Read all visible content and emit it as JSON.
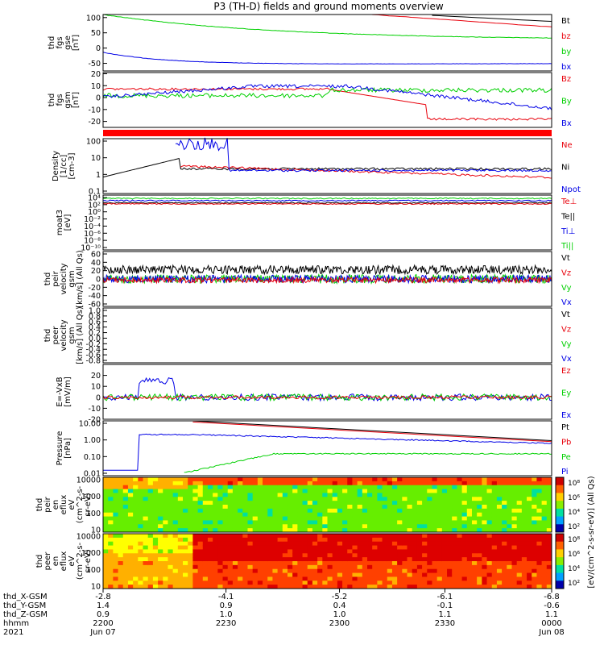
{
  "title": "P3 (TH-D) fields and ground moments overview",
  "colors": {
    "black": "#000000",
    "red": "#e8000b",
    "green": "#00d000",
    "blue": "#0000e6"
  },
  "chart_data": [
    {
      "type": "line",
      "ylabel": [
        "thd",
        "fgs",
        "gse",
        "[nT]"
      ],
      "yticks": [
        "100",
        "50",
        "0",
        "-50"
      ],
      "ylim": [
        -75,
        110
      ],
      "legend": [
        {
          "name": "Bt",
          "color": "black"
        },
        {
          "name": "bz",
          "color": "red"
        },
        {
          "name": "by",
          "color": "green"
        },
        {
          "name": "bx",
          "color": "blue"
        }
      ]
    },
    {
      "type": "line",
      "ylabel": [
        "thd",
        "fgs",
        "gsm",
        "[nT]"
      ],
      "yticks": [
        "20",
        "10",
        "0",
        "-10",
        "-20"
      ],
      "ylim": [
        -25,
        21
      ],
      "legend": [
        {
          "name": "Bz",
          "color": "red"
        },
        {
          "name": "By",
          "color": "green"
        },
        {
          "name": "Bx",
          "color": "blue"
        }
      ]
    },
    {
      "type": "line",
      "ylabel": [
        "Density",
        "[1/cc]",
        "[cm-3]"
      ],
      "yticks": [
        "100",
        "10",
        "1",
        "0.1"
      ],
      "scale": "log",
      "legend": [
        {
          "name": "Ne",
          "color": "red"
        },
        {
          "name": "Ni",
          "color": "black"
        },
        {
          "name": "Npot",
          "color": "blue"
        }
      ]
    },
    {
      "type": "line",
      "ylabel": [
        "moat3",
        "[eV]"
      ],
      "yticks": [
        "10⁴",
        "10²",
        "10⁰",
        "10⁻²",
        "10⁻⁴",
        "10⁻⁶",
        "10⁻⁸",
        "10⁻¹⁰"
      ],
      "scale": "log",
      "legend": [
        {
          "name": "Te⊥",
          "color": "red"
        },
        {
          "name": "Te||",
          "color": "black"
        },
        {
          "name": "Ti⊥",
          "color": "blue"
        },
        {
          "name": "Ti||",
          "color": "green"
        }
      ]
    },
    {
      "type": "line",
      "ylabel": [
        "thd",
        "peir",
        "velocity",
        "gsm",
        "[km/s] (All Qs)"
      ],
      "yticks": [
        "60",
        "40",
        "20",
        "0",
        "-20",
        "-40",
        "-60"
      ],
      "ylim": [
        -60,
        60
      ],
      "legend": [
        {
          "name": "Vt",
          "color": "black"
        },
        {
          "name": "Vz",
          "color": "red"
        },
        {
          "name": "Vy",
          "color": "green"
        },
        {
          "name": "Vx",
          "color": "blue"
        }
      ]
    },
    {
      "type": "line",
      "ylabel": [
        "thd",
        "peer",
        "velocity",
        "gsm",
        "[km/s] (All Qs)"
      ],
      "yticks": [
        "1.0",
        "0.8",
        "0.6",
        "0.4",
        "0.2",
        "0.0",
        "-0.2",
        "-0.4",
        "-0.6",
        "-0.8"
      ],
      "ylim": [
        -1,
        1
      ],
      "legend": [
        {
          "name": "Vt",
          "color": "black"
        },
        {
          "name": "Vz",
          "color": "red"
        },
        {
          "name": "Vy",
          "color": "green"
        },
        {
          "name": "Vx",
          "color": "blue"
        }
      ]
    },
    {
      "type": "line",
      "ylabel": [
        "E=-VxB",
        "[mV/m]"
      ],
      "yticks": [
        "20",
        "10",
        "0",
        "-10",
        "-20"
      ],
      "ylim": [
        -20,
        30
      ],
      "legend": [
        {
          "name": "Ez",
          "color": "red"
        },
        {
          "name": "Ey",
          "color": "green"
        },
        {
          "name": "Ex",
          "color": "blue"
        }
      ]
    },
    {
      "type": "line",
      "ylabel": [
        "Pressure",
        "[nPa]"
      ],
      "yticks": [
        "10.00",
        "1.00",
        "0.10",
        "0.01"
      ],
      "scale": "log",
      "legend": [
        {
          "name": "Pt",
          "color": "black"
        },
        {
          "name": "Pb",
          "color": "red"
        },
        {
          "name": "Pe",
          "color": "green"
        },
        {
          "name": "Pi",
          "color": "blue"
        }
      ]
    },
    {
      "type": "heatmap",
      "ylabel": [
        "thd",
        "peir",
        "en",
        "eflux",
        "eV",
        "(cm^2-s-",
        "sr-eV)"
      ],
      "yticks": [
        "10000",
        "1000",
        "100",
        "10"
      ],
      "scale": "log",
      "colorbar_ticks": [
        "10⁸",
        "10⁶",
        "10⁴",
        "10²"
      ],
      "colorbar_label": "[eV/(cm^2-s-sr-eV)] (All Qs)"
    },
    {
      "type": "heatmap",
      "ylabel": [
        "thd",
        "peer",
        "en",
        "eflux",
        "eV",
        "(cm^2-s-",
        "sr-eV)"
      ],
      "yticks": [
        "10000",
        "1000",
        "100",
        "10"
      ],
      "scale": "log",
      "colorbar_ticks": [
        "10⁸",
        "10⁶",
        "10⁴",
        "10²"
      ],
      "colorbar_label": "[eV/(cm^2-s-sr-eV)]"
    }
  ],
  "x_axis": {
    "rows": [
      {
        "label": "thd_X-GSM",
        "values": [
          "-2.8",
          "-4.1",
          "-5.2",
          "-6.1",
          "-6.8"
        ]
      },
      {
        "label": "thd_Y-GSM",
        "values": [
          "1.4",
          "0.9",
          "0.4",
          "-0.1",
          "-0.6"
        ]
      },
      {
        "label": "thd_Z-GSM",
        "values": [
          "0.9",
          "1.0",
          "1.0",
          "1.1",
          "1.1"
        ]
      },
      {
        "label": "hhmm",
        "values": [
          "2200",
          "2230",
          "2300",
          "2330",
          "0000"
        ]
      },
      {
        "label": "2021",
        "values": [
          "Jun 07",
          "",
          "",
          "",
          "Jun 08"
        ]
      }
    ]
  }
}
